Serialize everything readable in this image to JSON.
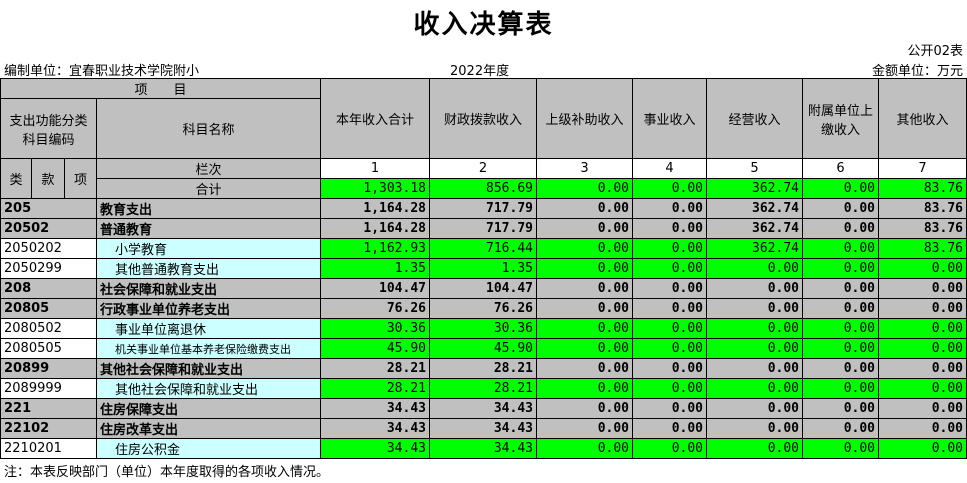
{
  "title": "收入决算表",
  "form_no": "公开02表",
  "unit": "编制单位：宜春职业技术学院附小",
  "year": "2022年度",
  "currency": "金额单位：万元",
  "header": {
    "item": "项　　目",
    "code": "支出功能分类科目编码",
    "name": "科目名称",
    "lei": "类",
    "kuan": "款",
    "xiang": "项",
    "lanci": "栏次",
    "heji": "合计",
    "cols": [
      "本年收入合计",
      "财政拨款收入",
      "上级补助收入",
      "事业收入",
      "经营收入",
      "附属单位上缴收入",
      "其他收入"
    ],
    "col_nums": [
      "1",
      "2",
      "3",
      "4",
      "5",
      "6",
      "7"
    ]
  },
  "total": [
    "1,303.18",
    "856.69",
    "0.00",
    "0.00",
    "362.74",
    "0.00",
    "83.76"
  ],
  "rows": [
    {
      "code": "205",
      "name": "教育支出",
      "level": 1,
      "values": [
        "1,164.28",
        "717.79",
        "0.00",
        "0.00",
        "362.74",
        "0.00",
        "83.76"
      ]
    },
    {
      "code": "20502",
      "name": "普通教育",
      "level": 2,
      "values": [
        "1,164.28",
        "717.79",
        "0.00",
        "0.00",
        "362.74",
        "0.00",
        "83.76"
      ]
    },
    {
      "code": "2050202",
      "name": "小学教育",
      "level": 3,
      "values": [
        "1,162.93",
        "716.44",
        "0.00",
        "0.00",
        "362.74",
        "0.00",
        "83.76"
      ]
    },
    {
      "code": "2050299",
      "name": "其他普通教育支出",
      "level": 3,
      "values": [
        "1.35",
        "1.35",
        "0.00",
        "0.00",
        "0.00",
        "0.00",
        "0.00"
      ]
    },
    {
      "code": "208",
      "name": "社会保障和就业支出",
      "level": 1,
      "values": [
        "104.47",
        "104.47",
        "0.00",
        "0.00",
        "0.00",
        "0.00",
        "0.00"
      ]
    },
    {
      "code": "20805",
      "name": "行政事业单位养老支出",
      "level": 2,
      "values": [
        "76.26",
        "76.26",
        "0.00",
        "0.00",
        "0.00",
        "0.00",
        "0.00"
      ]
    },
    {
      "code": "2080502",
      "name": "事业单位离退休",
      "level": 3,
      "values": [
        "30.36",
        "30.36",
        "0.00",
        "0.00",
        "0.00",
        "0.00",
        "0.00"
      ]
    },
    {
      "code": "2080505",
      "name": "机关事业单位基本养老保险缴费支出",
      "level": 3,
      "values": [
        "45.90",
        "45.90",
        "0.00",
        "0.00",
        "0.00",
        "0.00",
        "0.00"
      ]
    },
    {
      "code": "20899",
      "name": "其他社会保障和就业支出",
      "level": 2,
      "values": [
        "28.21",
        "28.21",
        "0.00",
        "0.00",
        "0.00",
        "0.00",
        "0.00"
      ]
    },
    {
      "code": "2089999",
      "name": "其他社会保障和就业支出",
      "level": 3,
      "values": [
        "28.21",
        "28.21",
        "0.00",
        "0.00",
        "0.00",
        "0.00",
        "0.00"
      ]
    },
    {
      "code": "221",
      "name": "住房保障支出",
      "level": 1,
      "values": [
        "34.43",
        "34.43",
        "0.00",
        "0.00",
        "0.00",
        "0.00",
        "0.00"
      ]
    },
    {
      "code": "22102",
      "name": "住房改革支出",
      "level": 2,
      "values": [
        "34.43",
        "34.43",
        "0.00",
        "0.00",
        "0.00",
        "0.00",
        "0.00"
      ]
    },
    {
      "code": "2210201",
      "name": "住房公积金",
      "level": 3,
      "values": [
        "34.43",
        "34.43",
        "0.00",
        "0.00",
        "0.00",
        "0.00",
        "0.00"
      ]
    }
  ],
  "note": "注：本表反映部门（单位）本年度取得的各项收入情况。",
  "colors": {
    "header_bg": "#c0c0c0",
    "value_bg": "#00ff00",
    "detail_name_bg": "#ccffff"
  }
}
